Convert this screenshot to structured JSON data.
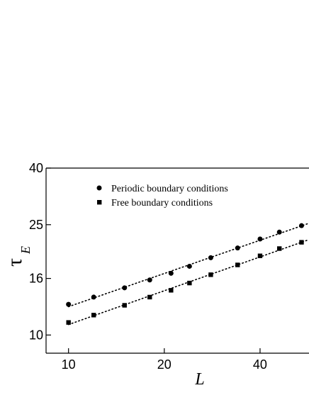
{
  "chart_data": {
    "type": "scatter",
    "xlabel": "L",
    "ylabel": {
      "main": "τ",
      "sub": "E"
    },
    "x_scale": "log",
    "y_scale": "log",
    "xlim": [
      8.5,
      57
    ],
    "ylim": [
      8.6,
      40
    ],
    "x_ticks": [
      10,
      20,
      40
    ],
    "y_ticks": [
      10,
      16,
      25,
      40
    ],
    "grid": false,
    "legend_position": "upper-left",
    "series": [
      {
        "name": "Periodic boundary conditions",
        "marker": "circle",
        "fit": "dotted-line",
        "x": [
          10,
          12,
          15,
          18,
          21,
          24,
          28,
          34,
          40,
          46,
          54
        ],
        "y": [
          12.9,
          13.7,
          14.8,
          15.8,
          16.7,
          17.7,
          19.0,
          20.6,
          22.2,
          23.5,
          24.8
        ]
      },
      {
        "name": "Free boundary conditions",
        "marker": "square",
        "fit": "dotted-line",
        "x": [
          10,
          12,
          15,
          18,
          21,
          24,
          28,
          34,
          40,
          46,
          54
        ],
        "y": [
          11.1,
          11.8,
          12.8,
          13.7,
          14.5,
          15.4,
          16.5,
          17.9,
          19.3,
          20.5,
          21.6
        ]
      }
    ]
  }
}
